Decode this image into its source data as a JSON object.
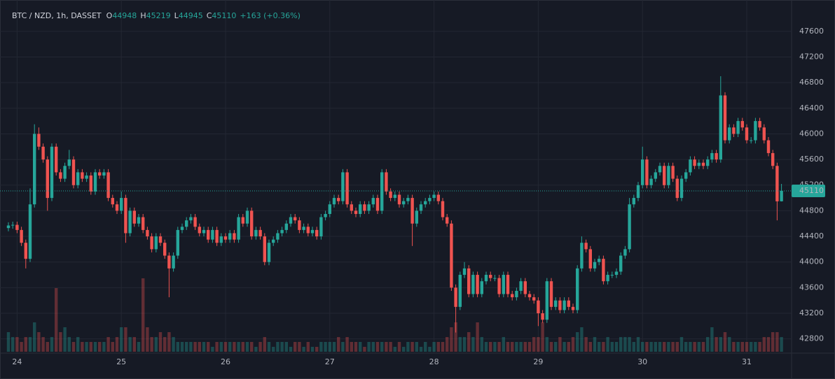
{
  "chart_data": {
    "type": "candlestick",
    "title": "BTC / NZD, 1h, DASSET",
    "ohlc_labels": [
      "O",
      "H",
      "L",
      "C"
    ],
    "change": "+163 (+0.36%)",
    "up_color": "#26a69a",
    "down_color": "#ef5350",
    "ylim": [
      42600,
      47980
    ],
    "yticks": [
      42800,
      43200,
      43600,
      44000,
      44400,
      44800,
      45200,
      45600,
      46000,
      46400,
      46800,
      47200,
      47600
    ],
    "grid": true,
    "categories": [
      null,
      null,
      "24",
      null,
      null,
      null,
      null,
      null,
      null,
      null,
      null,
      null,
      null,
      null,
      null,
      null,
      null,
      null,
      null,
      null,
      null,
      null,
      null,
      null,
      null,
      null,
      "25",
      null,
      null,
      null,
      null,
      null,
      null,
      null,
      null,
      null,
      null,
      null,
      null,
      null,
      null,
      null,
      null,
      null,
      null,
      null,
      null,
      null,
      null,
      null,
      "26",
      null,
      null,
      null,
      null,
      null,
      null,
      null,
      null,
      null,
      null,
      null,
      null,
      null,
      null,
      null,
      null,
      null,
      null,
      null,
      null,
      null,
      null,
      null,
      "27",
      null,
      null,
      null,
      null,
      null,
      null,
      null,
      null,
      null,
      null,
      null,
      null,
      null,
      null,
      null,
      null,
      null,
      null,
      null,
      null,
      null,
      null,
      null,
      "28",
      null,
      null,
      null,
      null,
      null,
      null,
      null,
      null,
      null,
      null,
      null,
      null,
      null,
      null,
      null,
      null,
      null,
      null,
      null,
      null,
      null,
      null,
      null,
      "29",
      null,
      null,
      null,
      null,
      null,
      null,
      null,
      null,
      null,
      null,
      null,
      null,
      null,
      null,
      null,
      null,
      null,
      null,
      null,
      null,
      null,
      null,
      null,
      "30",
      null,
      null,
      null,
      null,
      null,
      null,
      null,
      null,
      null,
      null,
      null,
      null,
      null,
      null,
      null,
      null,
      null,
      null,
      null,
      null,
      null,
      null,
      null,
      "31",
      null,
      null,
      null,
      null,
      null,
      null,
      null,
      null
    ],
    "open": [
      44530,
      44570,
      44580,
      44500,
      44300,
      44050,
      44900,
      46000,
      45800,
      45600,
      45000,
      45800,
      45400,
      45300,
      45500,
      45600,
      45200,
      45400,
      45300,
      45350,
      45100,
      45400,
      45350,
      45400,
      45000,
      44900,
      44800,
      45000,
      44450,
      44800,
      44600,
      44700,
      44500,
      44400,
      44200,
      44400,
      44300,
      44100,
      43900,
      44100,
      44500,
      44550,
      44650,
      44700,
      44550,
      44450,
      44500,
      44350,
      44500,
      44300,
      44400,
      44350,
      44450,
      44350,
      44700,
      44600,
      44800,
      44400,
      44500,
      44400,
      44000,
      44300,
      44350,
      44450,
      44500,
      44600,
      44700,
      44650,
      44500,
      44550,
      44450,
      44500,
      44400,
      44700,
      44750,
      44900,
      45000,
      44950,
      45400,
      44900,
      44800,
      44750,
      44900,
      44800,
      44900,
      45000,
      44800,
      45400,
      45100,
      45000,
      45050,
      44900,
      44950,
      45000,
      44600,
      44800,
      44900,
      44950,
      45000,
      45050,
      44950,
      44700,
      44600,
      43600,
      43300,
      43800,
      43900,
      43500,
      43800,
      43500,
      43700,
      43800,
      43750,
      43750,
      43500,
      43800,
      43500,
      43450,
      43550,
      43700,
      43500,
      43450,
      43400,
      43200,
      43100,
      43700,
      43300,
      43400,
      43250,
      43400,
      43300,
      43250,
      43900,
      44300,
      44200,
      43900,
      44000,
      44050,
      43700,
      43800,
      43800,
      43850,
      44100,
      44200,
      44900,
      45000,
      45200,
      45600,
      45200,
      45300,
      45400,
      45500,
      45200,
      45500,
      45300,
      45000,
      45300,
      45400,
      45600,
      45500,
      45550,
      45500,
      45600,
      45700,
      45600,
      46600,
      45900,
      46100,
      46000,
      46200,
      46100,
      45900,
      45900,
      46200,
      46100,
      45900,
      45700,
      45500,
      44948
    ],
    "high": [
      44620,
      44630,
      44630,
      44550,
      44350,
      45150,
      46150,
      46100,
      45850,
      45650,
      45850,
      45850,
      45450,
      45550,
      45750,
      45650,
      45450,
      45450,
      45400,
      45400,
      45450,
      45450,
      45450,
      45450,
      45050,
      44950,
      45100,
      45050,
      44850,
      44850,
      44750,
      44750,
      44550,
      44450,
      44450,
      44450,
      44350,
      44150,
      44150,
      44550,
      44600,
      44700,
      44750,
      44750,
      44600,
      44550,
      44550,
      44550,
      44550,
      44450,
      44450,
      44500,
      44500,
      44750,
      44750,
      44850,
      44850,
      44550,
      44550,
      44450,
      44350,
      44400,
      44500,
      44550,
      44650,
      44750,
      44750,
      44700,
      44600,
      44600,
      44550,
      44550,
      44750,
      44800,
      44950,
      45050,
      45050,
      45450,
      45450,
      44950,
      44850,
      44950,
      44950,
      44950,
      45050,
      45050,
      45450,
      45450,
      45150,
      45100,
      45100,
      45000,
      45050,
      45050,
      44850,
      44950,
      45000,
      45050,
      45100,
      45100,
      45000,
      44750,
      44650,
      43650,
      43850,
      44000,
      43950,
      43850,
      43850,
      43750,
      43850,
      43850,
      43800,
      43800,
      43850,
      43850,
      43550,
      43600,
      43750,
      43750,
      43550,
      43500,
      43450,
      43250,
      43750,
      43750,
      43450,
      43450,
      43450,
      43450,
      43350,
      43950,
      44400,
      44350,
      44250,
      44050,
      44100,
      44100,
      43850,
      43850,
      43900,
      44150,
      44250,
      45000,
      45050,
      45250,
      45800,
      45650,
      45350,
      45450,
      45550,
      45550,
      45550,
      45550,
      45350,
      45350,
      45450,
      45650,
      45650,
      45600,
      45600,
      45650,
      45750,
      45750,
      46900,
      46650,
      46150,
      46150,
      46250,
      46250,
      46150,
      45950,
      46250,
      46250,
      46150,
      45950,
      45750,
      45550,
      45219
    ],
    "low": [
      44480,
      44520,
      44450,
      44250,
      43900,
      44000,
      44850,
      45750,
      45550,
      44800,
      44950,
      45350,
      45250,
      45250,
      45450,
      45150,
      45150,
      45250,
      45250,
      45050,
      45050,
      45300,
      45300,
      44950,
      44850,
      44750,
      44750,
      44300,
      44400,
      44550,
      44550,
      44450,
      44350,
      44150,
      44150,
      44250,
      44050,
      43450,
      43850,
      44050,
      44450,
      44500,
      44600,
      44500,
      44400,
      44400,
      44300,
      44300,
      44250,
      44250,
      44300,
      44300,
      44300,
      44300,
      44550,
      44550,
      44350,
      44350,
      44350,
      43950,
      43950,
      44250,
      44300,
      44400,
      44450,
      44550,
      44600,
      44450,
      44450,
      44400,
      44400,
      44350,
      44350,
      44650,
      44700,
      44850,
      44900,
      44900,
      44850,
      44750,
      44700,
      44700,
      44750,
      44750,
      44850,
      44750,
      44750,
      45050,
      44950,
      44950,
      44850,
      44850,
      44900,
      44250,
      44550,
      44750,
      44850,
      44900,
      44950,
      44900,
      44650,
      44550,
      43550,
      42900,
      43250,
      43750,
      43450,
      43450,
      43450,
      43450,
      43650,
      43700,
      43700,
      43450,
      43450,
      43450,
      43400,
      43400,
      43500,
      43450,
      43400,
      43350,
      43000,
      43050,
      43050,
      43250,
      43250,
      43200,
      43200,
      43250,
      43200,
      43200,
      43850,
      44150,
      43850,
      43850,
      43950,
      43650,
      43650,
      43750,
      43750,
      43800,
      44050,
      44150,
      44850,
      44950,
      45150,
      45150,
      45150,
      45250,
      45350,
      45150,
      45150,
      45250,
      44950,
      44950,
      45250,
      45350,
      45450,
      45450,
      45450,
      45450,
      45550,
      45550,
      45550,
      45850,
      45850,
      45950,
      45950,
      46050,
      45850,
      45850,
      45850,
      46050,
      45850,
      45650,
      45450,
      44650,
      44945
    ],
    "close": [
      44570,
      44580,
      44500,
      44300,
      44050,
      44900,
      46000,
      45800,
      45600,
      45000,
      45800,
      45400,
      45300,
      45500,
      45600,
      45200,
      45400,
      45300,
      45350,
      45100,
      45400,
      45350,
      45400,
      45000,
      44900,
      44800,
      45000,
      44450,
      44800,
      44600,
      44700,
      44500,
      44400,
      44200,
      44400,
      44300,
      44100,
      43900,
      44100,
      44500,
      44550,
      44650,
      44700,
      44550,
      44450,
      44500,
      44350,
      44500,
      44300,
      44400,
      44350,
      44450,
      44350,
      44700,
      44600,
      44800,
      44400,
      44500,
      44400,
      44000,
      44300,
      44350,
      44450,
      44500,
      44600,
      44700,
      44650,
      44500,
      44550,
      44450,
      44500,
      44400,
      44700,
      44750,
      44900,
      45000,
      44950,
      45400,
      44900,
      44800,
      44750,
      44900,
      44800,
      44900,
      45000,
      44800,
      45400,
      45100,
      45000,
      45050,
      44900,
      44950,
      45000,
      44600,
      44800,
      44900,
      44950,
      45000,
      45050,
      44950,
      44700,
      44600,
      43600,
      43300,
      43800,
      43900,
      43500,
      43800,
      43500,
      43700,
      43800,
      43750,
      43750,
      43500,
      43800,
      43500,
      43450,
      43550,
      43700,
      43500,
      43450,
      43400,
      43200,
      43100,
      43700,
      43300,
      43400,
      43250,
      43400,
      43300,
      43250,
      43900,
      44300,
      44200,
      43900,
      44000,
      44050,
      43700,
      43800,
      43800,
      43850,
      44100,
      44200,
      44900,
      45000,
      45200,
      45600,
      45200,
      45300,
      45400,
      45500,
      45200,
      45500,
      45300,
      45000,
      45300,
      45400,
      45600,
      45500,
      45550,
      45500,
      45600,
      45700,
      45600,
      46600,
      45900,
      46100,
      46000,
      46200,
      46100,
      45900,
      45900,
      46200,
      46100,
      45900,
      45700,
      45500,
      44947,
      45110
    ],
    "volume": [
      4,
      3,
      3,
      2,
      3,
      3,
      6,
      4,
      3,
      2,
      3,
      13,
      4,
      5,
      3,
      2,
      3,
      2,
      2,
      2,
      2,
      2,
      2,
      3,
      2,
      3,
      5,
      5,
      3,
      3,
      2,
      15,
      5,
      3,
      3,
      4,
      3,
      4,
      3,
      2,
      2,
      2,
      2,
      2,
      2,
      2,
      2,
      1,
      2,
      2,
      2,
      2,
      2,
      2,
      2,
      2,
      2,
      1,
      2,
      3,
      2,
      1,
      2,
      2,
      2,
      1,
      2,
      2,
      1,
      2,
      1,
      1,
      2,
      2,
      2,
      2,
      3,
      2,
      3,
      2,
      2,
      2,
      1,
      2,
      2,
      2,
      2,
      2,
      2,
      1,
      2,
      1,
      2,
      2,
      2,
      1,
      2,
      1,
      2,
      2,
      2,
      3,
      5,
      6,
      3,
      3,
      4,
      3,
      6,
      3,
      2,
      2,
      2,
      2,
      3,
      2,
      2,
      2,
      2,
      2,
      2,
      3,
      3,
      6,
      3,
      2,
      2,
      3,
      2,
      2,
      3,
      4,
      5,
      3,
      2,
      3,
      2,
      2,
      3,
      2,
      2,
      3,
      3,
      3,
      2,
      3,
      2,
      2,
      2,
      2,
      2,
      2,
      2,
      2,
      2,
      3,
      2,
      2,
      2,
      2,
      2,
      3,
      5,
      3,
      3,
      4,
      3,
      2,
      2,
      2,
      2,
      2,
      2,
      2,
      3,
      3,
      4,
      4,
      3
    ]
  }
}
